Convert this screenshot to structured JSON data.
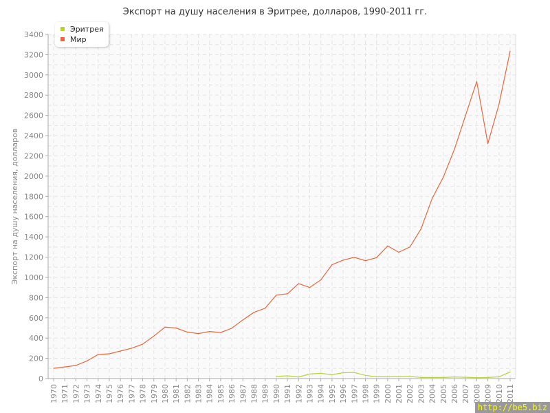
{
  "chart_data": {
    "type": "line",
    "title": "Экспорт на душу населения в Эритрее, долларов, 1990-2011 гг.",
    "ylabel": "Экспорт на душу населения, долларов",
    "xlabel": "",
    "ylim": [
      0,
      3400
    ],
    "yticks": [
      0,
      200,
      400,
      600,
      800,
      1000,
      1200,
      1400,
      1600,
      1800,
      2000,
      2200,
      2400,
      2600,
      2800,
      3000,
      3200,
      3400
    ],
    "grid": true,
    "legend": "top-left",
    "x": [
      1970,
      1971,
      1972,
      1973,
      1974,
      1975,
      1976,
      1977,
      1978,
      1979,
      1980,
      1981,
      1982,
      1983,
      1984,
      1985,
      1986,
      1987,
      1988,
      1989,
      1990,
      1991,
      1992,
      1993,
      1994,
      1995,
      1996,
      1997,
      1998,
      1999,
      2000,
      2001,
      2002,
      2003,
      2004,
      2005,
      2006,
      2007,
      2008,
      2009,
      2010,
      2011
    ],
    "series": [
      {
        "name": "Эритрея",
        "color": "#b5d334",
        "values": [
          null,
          null,
          null,
          null,
          null,
          null,
          null,
          null,
          null,
          null,
          null,
          null,
          null,
          null,
          null,
          null,
          null,
          null,
          null,
          null,
          22,
          27,
          16,
          45,
          52,
          38,
          58,
          60,
          32,
          18,
          18,
          20,
          22,
          11,
          11,
          11,
          16,
          13,
          9,
          11,
          18,
          65
        ]
      },
      {
        "name": "Мир",
        "color": "#e8663a",
        "values": [
          102,
          115,
          130,
          175,
          238,
          245,
          272,
          300,
          340,
          420,
          508,
          500,
          460,
          445,
          465,
          455,
          497,
          580,
          655,
          695,
          825,
          838,
          938,
          900,
          975,
          1125,
          1170,
          1198,
          1165,
          1195,
          1310,
          1248,
          1300,
          1478,
          1780,
          1990,
          2265,
          2600,
          2935,
          2320,
          2710,
          3235
        ]
      }
    ]
  },
  "watermark": "http://be5.biz"
}
